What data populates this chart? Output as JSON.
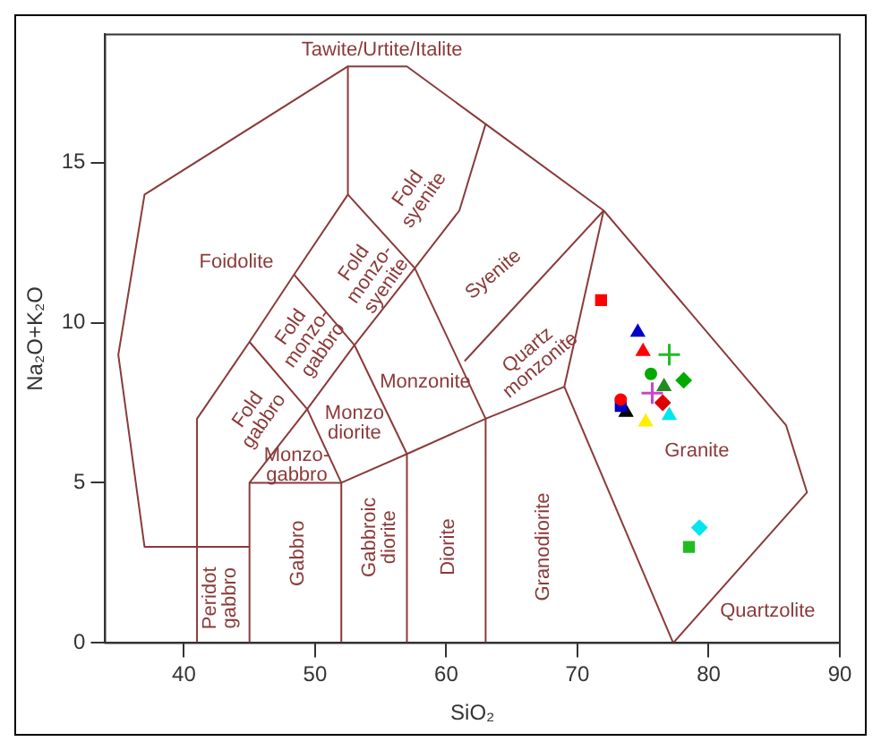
{
  "chart_data": {
    "type": "scatter",
    "xlabel": "SiO₂",
    "ylabel": "Na₂O+K₂O",
    "xlim": [
      34,
      90
    ],
    "ylim": [
      0,
      19
    ],
    "xticks": [
      40,
      50,
      60,
      70,
      80,
      90
    ],
    "yticks": [
      0,
      5,
      10,
      15
    ],
    "grid": false,
    "legend": false,
    "series": [
      {
        "type": "line",
        "color": "#8b3a3a",
        "marker": "none",
        "x": [
          41,
          41,
          45,
          48.4,
          52.5,
          52.5,
          57,
          63,
          72,
          85.9,
          87.5,
          77.3
        ],
        "values": [
          0,
          7,
          9.4,
          11.5,
          14,
          18,
          18,
          16.2,
          13.5,
          6.8,
          4.7,
          0
        ]
      },
      {
        "type": "line",
        "color": "#8b3a3a",
        "marker": "none",
        "x": [
          45,
          37,
          35,
          37,
          52.5
        ],
        "values": [
          3,
          3,
          9,
          14,
          18
        ]
      },
      {
        "type": "line",
        "color": "#8b3a3a",
        "marker": "none",
        "x": [
          45,
          45,
          52,
          52
        ],
        "values": [
          0,
          5,
          5,
          0
        ]
      },
      {
        "type": "line",
        "color": "#8b3a3a",
        "marker": "none",
        "x": [
          52.5,
          57.6,
          61,
          63
        ],
        "values": [
          14,
          11.7,
          13.5,
          16.2
        ]
      },
      {
        "type": "line",
        "color": "#8b3a3a",
        "marker": "none",
        "x": [
          48.4,
          53,
          57,
          57
        ],
        "values": [
          11.5,
          9.3,
          5.9,
          0
        ]
      },
      {
        "type": "line",
        "color": "#8b3a3a",
        "marker": "none",
        "x": [
          45,
          49.4,
          52
        ],
        "values": [
          9.4,
          7.3,
          5
        ]
      },
      {
        "type": "line",
        "color": "#8b3a3a",
        "marker": "none",
        "x": [
          45,
          49.4,
          53,
          57.6
        ],
        "values": [
          5,
          7.3,
          9.3,
          11.7
        ]
      },
      {
        "type": "line",
        "color": "#8b3a3a",
        "marker": "none",
        "x": [
          57.6,
          63,
          63
        ],
        "values": [
          11.7,
          7,
          0
        ]
      },
      {
        "type": "line",
        "color": "#8b3a3a",
        "marker": "none",
        "x": [
          52,
          57,
          63,
          69,
          72
        ],
        "values": [
          5,
          5.9,
          7,
          8,
          13.5
        ]
      },
      {
        "type": "line",
        "color": "#8b3a3a",
        "marker": "none",
        "x": [
          61.4,
          72
        ],
        "values": [
          8.8,
          13.5
        ]
      },
      {
        "type": "line",
        "color": "#8b3a3a",
        "marker": "none",
        "x": [
          69,
          77.3
        ],
        "values": [
          8,
          0
        ]
      },
      {
        "type": "scatter",
        "color": "#ff0000",
        "marker": "square",
        "x": [
          71.8
        ],
        "values": [
          10.7
        ]
      },
      {
        "type": "scatter",
        "color": "#0000cc",
        "marker": "triangle",
        "x": [
          74.6
        ],
        "values": [
          9.7
        ]
      },
      {
        "type": "scatter",
        "color": "#ff0000",
        "marker": "triangle",
        "x": [
          75.0
        ],
        "values": [
          9.1
        ]
      },
      {
        "type": "scatter",
        "color": "#22bb22",
        "marker": "cross",
        "x": [
          77.0
        ],
        "values": [
          9.0
        ]
      },
      {
        "type": "scatter",
        "color": "#00aa00",
        "marker": "circle",
        "x": [
          75.6
        ],
        "values": [
          8.4
        ]
      },
      {
        "type": "scatter",
        "color": "#00aa00",
        "marker": "diamond",
        "x": [
          78.1
        ],
        "values": [
          8.2
        ]
      },
      {
        "type": "scatter",
        "color": "#228b22",
        "marker": "triangle",
        "x": [
          76.6
        ],
        "values": [
          8.0
        ]
      },
      {
        "type": "scatter",
        "color": "#cc44cc",
        "marker": "cross",
        "x": [
          75.7
        ],
        "values": [
          7.8
        ]
      },
      {
        "type": "scatter",
        "color": "#ff0000",
        "marker": "circle",
        "x": [
          73.3
        ],
        "values": [
          7.6
        ]
      },
      {
        "type": "scatter",
        "color": "#dd0000",
        "marker": "diamond",
        "x": [
          76.5
        ],
        "values": [
          7.5
        ]
      },
      {
        "type": "scatter",
        "color": "#0000cc",
        "marker": "square",
        "x": [
          73.3
        ],
        "values": [
          7.4
        ]
      },
      {
        "type": "scatter",
        "color": "#000000",
        "marker": "triangle",
        "x": [
          73.7
        ],
        "values": [
          7.2
        ]
      },
      {
        "type": "scatter",
        "color": "#ffee00",
        "marker": "triangle",
        "x": [
          75.2
        ],
        "values": [
          6.9
        ]
      },
      {
        "type": "scatter",
        "color": "#00e5ee",
        "marker": "triangle",
        "x": [
          77.0
        ],
        "values": [
          7.1
        ]
      },
      {
        "type": "scatter",
        "color": "#00e5ee",
        "marker": "diamond",
        "x": [
          79.3
        ],
        "values": [
          3.6
        ]
      },
      {
        "type": "scatter",
        "color": "#22bb22",
        "marker": "square",
        "x": [
          78.5
        ],
        "values": [
          3.0
        ]
      }
    ],
    "annotations": [
      "Tawite/Urtite/Italite",
      "Foidolite",
      "Fold\nsyenite",
      "Fold\nmonzo-\nsyenite",
      "Syenite",
      "Fold\nmonzo-\ngabbro",
      "Fold\ngabbro",
      "Monzonite",
      "Quartz\nmonzonite",
      "Monzo\ndiorite",
      "Monzo-\ngabbro",
      "Granite",
      "Quartzolite",
      "Peridot\ngabbro",
      "Gabbro",
      "Gabbroic\ndiorite",
      "Diorite",
      "Granodiorite"
    ]
  }
}
